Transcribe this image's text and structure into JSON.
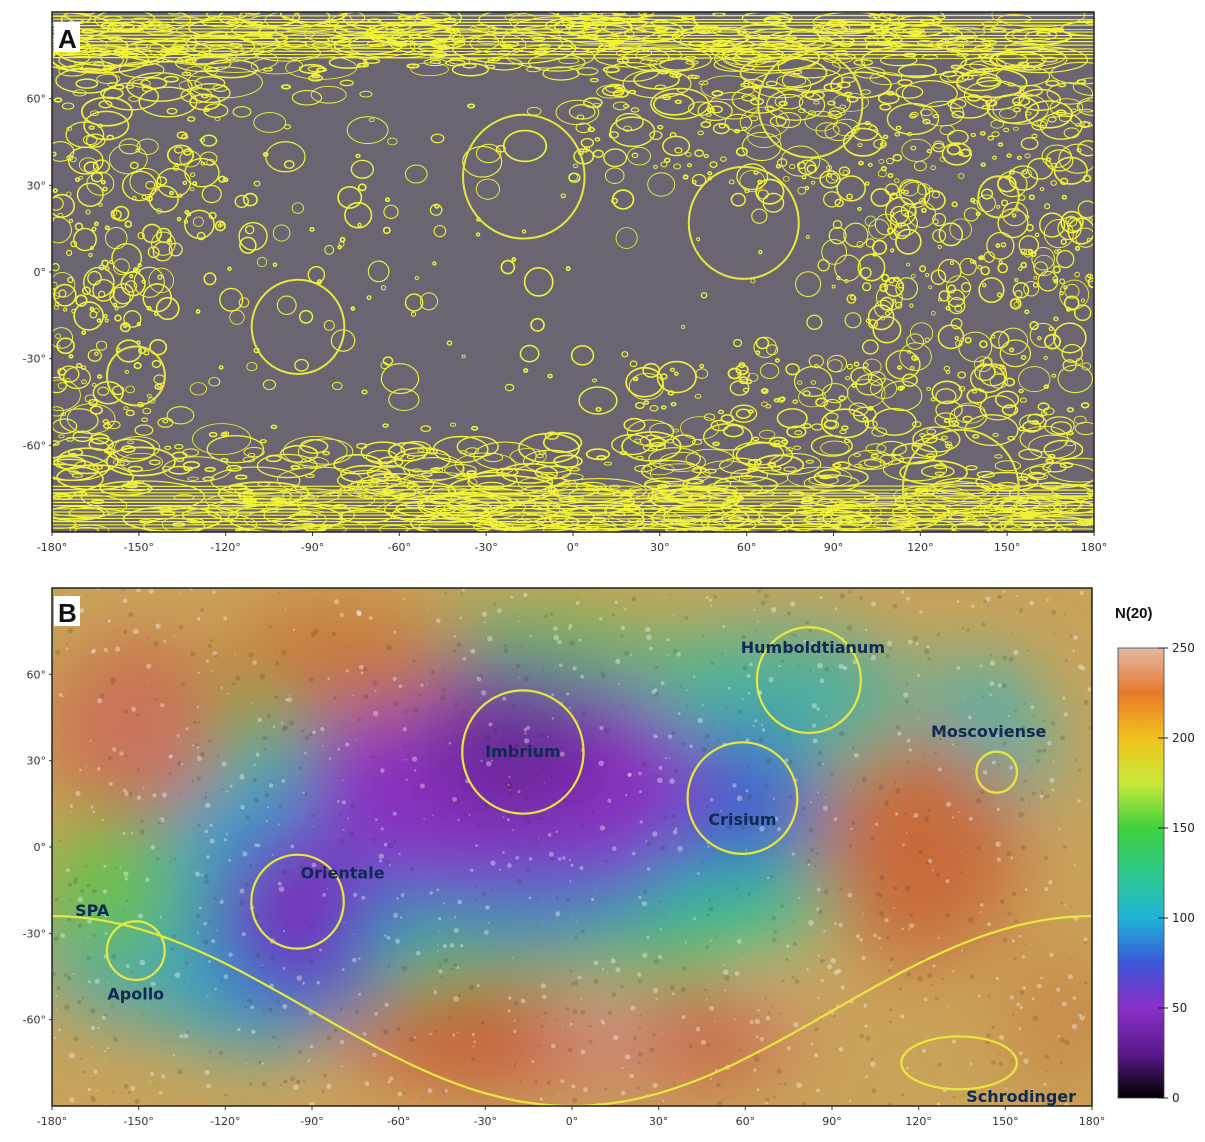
{
  "panel_a": {
    "letter": "A"
  },
  "panel_b": {
    "letter": "B"
  },
  "longitude_ticks": [
    {
      "lon": -180,
      "label": "-180°"
    },
    {
      "lon": -150,
      "label": "-150°"
    },
    {
      "lon": -120,
      "label": "-120°"
    },
    {
      "lon": -90,
      "label": "-90°"
    },
    {
      "lon": -60,
      "label": "-60°"
    },
    {
      "lon": -30,
      "label": "-30°"
    },
    {
      "lon": 0,
      "label": "0°"
    },
    {
      "lon": 30,
      "label": "30°"
    },
    {
      "lon": 60,
      "label": "60°"
    },
    {
      "lon": 90,
      "label": "90°"
    },
    {
      "lon": 120,
      "label": "120°"
    },
    {
      "lon": 150,
      "label": "150°"
    },
    {
      "lon": 180,
      "label": "180°"
    }
  ],
  "latitude_ticks": [
    {
      "lat": 60,
      "label": "60°"
    },
    {
      "lat": 30,
      "label": "30°"
    },
    {
      "lat": 0,
      "label": "0°"
    },
    {
      "lat": -30,
      "label": "-30°"
    },
    {
      "lat": -60,
      "label": "-60°"
    }
  ],
  "basins": [
    {
      "name": "Imbrium",
      "label": "Imbrium",
      "lon": -17,
      "lat": 33,
      "r_lon": 21
    },
    {
      "name": "Crisium",
      "label": "Crisium",
      "lon": 59,
      "lat": 17,
      "r_lon": 19
    },
    {
      "name": "Orientale",
      "label": "Orientale",
      "lon": -95,
      "lat": -19,
      "r_lon": 16
    },
    {
      "name": "Humboldtianum",
      "label": "Humboldtianum",
      "lon": 82,
      "lat": 58,
      "r_lon": 18
    },
    {
      "name": "Moscoviense",
      "label": "Moscoviense",
      "lon": 147,
      "lat": 26,
      "r_lon": 7
    },
    {
      "name": "Apollo",
      "label": "Apollo",
      "lon": -151,
      "lat": -36,
      "r_lon": 10
    },
    {
      "name": "Schrodinger",
      "label": "Schrodinger",
      "lon": 134,
      "lat": -75,
      "r_lon": 20
    },
    {
      "name": "SPA",
      "label": "SPA"
    }
  ],
  "colorbar": {
    "title": "N(20)",
    "min": 0,
    "max": 250,
    "ticks": [
      {
        "value": 250,
        "label": "250"
      },
      {
        "value": 200,
        "label": "200"
      },
      {
        "value": 150,
        "label": "150"
      },
      {
        "value": 100,
        "label": "100"
      },
      {
        "value": 50,
        "label": "50"
      },
      {
        "value": 0,
        "label": "0"
      }
    ],
    "stops": [
      {
        "v": 0,
        "color": "#000000"
      },
      {
        "v": 25,
        "color": "#5a1a8c"
      },
      {
        "v": 50,
        "color": "#8b2fc9"
      },
      {
        "v": 75,
        "color": "#3b56d8"
      },
      {
        "v": 100,
        "color": "#1fb4d8"
      },
      {
        "v": 125,
        "color": "#2fc98a"
      },
      {
        "v": 150,
        "color": "#3fd13f"
      },
      {
        "v": 175,
        "color": "#c9e83a"
      },
      {
        "v": 200,
        "color": "#f2c21c"
      },
      {
        "v": 225,
        "color": "#e87a2a"
      },
      {
        "v": 250,
        "color": "#e0b9a5"
      }
    ]
  },
  "colors": {
    "crater_outline": "#f2f23a",
    "map_a_background": "#6a6570",
    "basin_ring": "#e8e83c"
  }
}
